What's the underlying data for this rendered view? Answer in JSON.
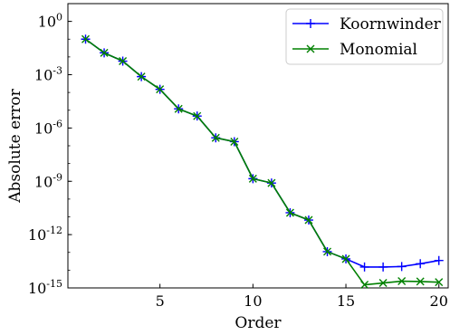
{
  "chart_data": {
    "type": "line",
    "title": "",
    "xlabel": "Order",
    "ylabel": "Absolute error",
    "x": [
      1,
      2,
      3,
      4,
      5,
      6,
      7,
      8,
      9,
      10,
      11,
      12,
      13,
      14,
      15,
      16,
      17,
      18,
      19,
      20
    ],
    "series": [
      {
        "name": "Koornwinder",
        "color": "#0000ff",
        "marker": "plus",
        "values": [
          0.1,
          0.017,
          0.0058,
          0.00078,
          0.00015,
          1.2e-05,
          4.7e-06,
          2.8e-07,
          1.7e-07,
          1.4e-09,
          8e-10,
          1.7e-11,
          6.6e-12,
          1.1e-13,
          4.3e-14,
          1.5e-14,
          1.5e-14,
          1.6e-14,
          2.3e-14,
          3.5e-14
        ]
      },
      {
        "name": "Monomial",
        "color": "#008000",
        "marker": "x",
        "values": [
          0.1,
          0.017,
          0.0058,
          0.00078,
          0.00015,
          1.2e-05,
          4.7e-06,
          2.8e-07,
          1.7e-07,
          1.4e-09,
          8e-10,
          1.7e-11,
          6.6e-12,
          1.1e-13,
          4.3e-14,
          1.5e-15,
          1.9e-15,
          2.4e-15,
          2.3e-15,
          2.1e-15
        ]
      }
    ],
    "xlim": [
      0.05,
      20.5
    ],
    "ylim": [
      1e-15,
      10
    ],
    "yscale": "log",
    "xticks": [
      {
        "value": 5,
        "label": "5"
      },
      {
        "value": 10,
        "label": "10"
      },
      {
        "value": 15,
        "label": "15"
      },
      {
        "value": 20,
        "label": "20"
      }
    ],
    "yticks": [
      {
        "exp": 0,
        "base": "10",
        "sup": "0"
      },
      {
        "exp": -3,
        "base": "10",
        "sup": "-3"
      },
      {
        "exp": -6,
        "base": "10",
        "sup": "-6"
      },
      {
        "exp": -9,
        "base": "10",
        "sup": "-9"
      },
      {
        "exp": -12,
        "base": "10",
        "sup": "-12"
      },
      {
        "exp": -15,
        "base": "10",
        "sup": "-15"
      }
    ],
    "grid": false,
    "legend_position": "top-right"
  }
}
